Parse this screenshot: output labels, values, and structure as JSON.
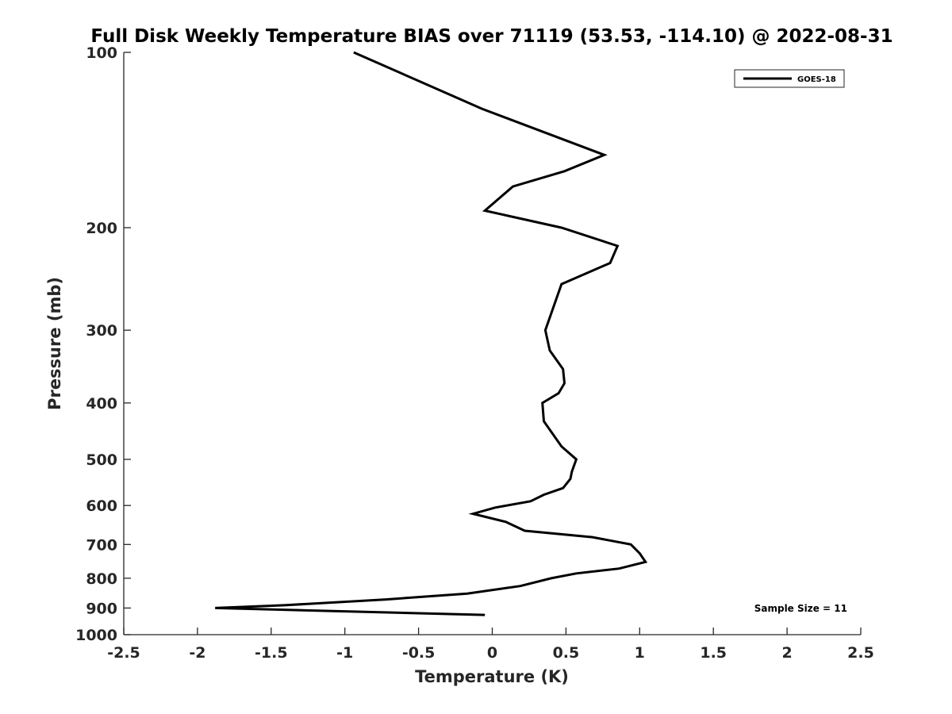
{
  "chart_data": {
    "type": "line",
    "title": "Full Disk Weekly Temperature BIAS over 71119 (53.53, -114.10) @ 2022-08-31",
    "xlabel": "Temperature (K)",
    "ylabel": "Pressure (mb)",
    "xlim": [
      -2.5,
      2.5
    ],
    "ylim": [
      100,
      1000
    ],
    "y_scale": "log",
    "y_reversed": true,
    "x_ticks": [
      "-2.5",
      "-2",
      "-1.5",
      "-1",
      "-0.5",
      "0",
      "0.5",
      "1",
      "1.5",
      "2",
      "2.5"
    ],
    "x_tick_values": [
      -2.5,
      -2,
      -1.5,
      -1,
      -0.5,
      0,
      0.5,
      1,
      1.5,
      2,
      2.5
    ],
    "y_ticks": [
      "100",
      "200",
      "300",
      "400",
      "500",
      "600",
      "700",
      "800",
      "900",
      "1000"
    ],
    "y_tick_values": [
      100,
      200,
      300,
      400,
      500,
      600,
      700,
      800,
      900,
      1000
    ],
    "grid": false,
    "legend_position": "top-right",
    "series": [
      {
        "name": "GOES-18",
        "color": "#000000",
        "points": [
          {
            "x": -0.94,
            "p": 100
          },
          {
            "x": -0.07,
            "p": 125
          },
          {
            "x": 0.76,
            "p": 150
          },
          {
            "x": 0.49,
            "p": 160
          },
          {
            "x": 0.14,
            "p": 170
          },
          {
            "x": -0.05,
            "p": 187
          },
          {
            "x": 0.47,
            "p": 200
          },
          {
            "x": 0.85,
            "p": 215
          },
          {
            "x": 0.8,
            "p": 230
          },
          {
            "x": 0.47,
            "p": 250
          },
          {
            "x": 0.36,
            "p": 300
          },
          {
            "x": 0.39,
            "p": 325
          },
          {
            "x": 0.48,
            "p": 350
          },
          {
            "x": 0.49,
            "p": 370
          },
          {
            "x": 0.45,
            "p": 385
          },
          {
            "x": 0.34,
            "p": 400
          },
          {
            "x": 0.35,
            "p": 430
          },
          {
            "x": 0.47,
            "p": 475
          },
          {
            "x": 0.57,
            "p": 500
          },
          {
            "x": 0.54,
            "p": 525
          },
          {
            "x": 0.53,
            "p": 540
          },
          {
            "x": 0.48,
            "p": 560
          },
          {
            "x": 0.35,
            "p": 575
          },
          {
            "x": 0.26,
            "p": 590
          },
          {
            "x": 0.02,
            "p": 605
          },
          {
            "x": -0.13,
            "p": 620
          },
          {
            "x": 0.09,
            "p": 640
          },
          {
            "x": 0.22,
            "p": 663
          },
          {
            "x": 0.68,
            "p": 680
          },
          {
            "x": 0.94,
            "p": 700
          },
          {
            "x": 1.0,
            "p": 725
          },
          {
            "x": 1.04,
            "p": 750
          },
          {
            "x": 0.86,
            "p": 770
          },
          {
            "x": 0.57,
            "p": 785
          },
          {
            "x": 0.4,
            "p": 800
          },
          {
            "x": 0.19,
            "p": 825
          },
          {
            "x": -0.17,
            "p": 850
          },
          {
            "x": -0.72,
            "p": 870
          },
          {
            "x": -1.41,
            "p": 890
          },
          {
            "x": -1.88,
            "p": 900
          },
          {
            "x": -0.05,
            "p": 925
          }
        ]
      }
    ],
    "annotations": [
      {
        "text": "Sample Size = 11",
        "anchor": "bottom-right"
      }
    ]
  }
}
